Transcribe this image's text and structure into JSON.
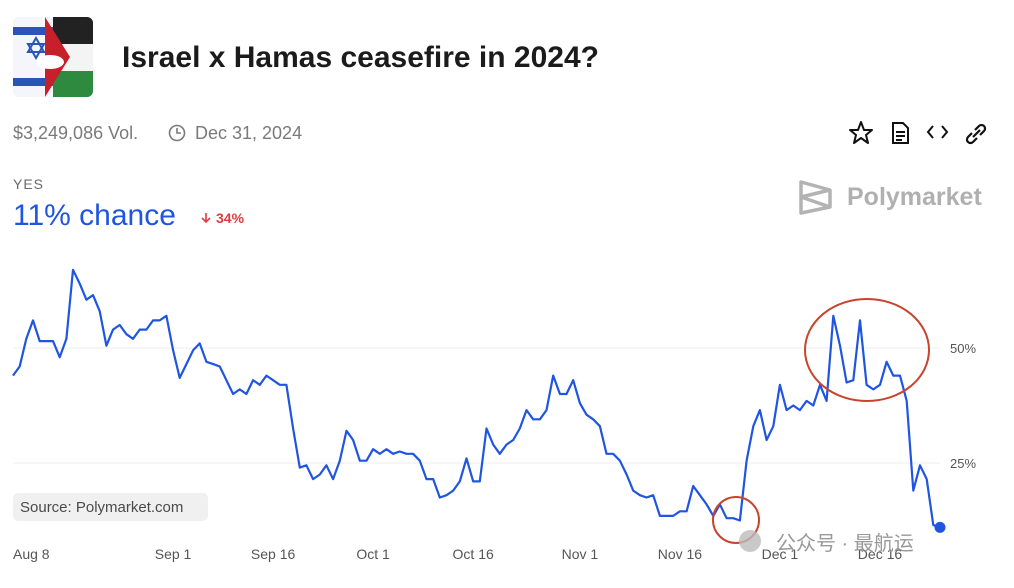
{
  "header": {
    "title": "Israel x Hamas ceasefire in 2024?",
    "volume": "$3,249,086 Vol.",
    "end_date": "Dec 31, 2024",
    "outcome": "YES",
    "chance": "11% chance",
    "change": "34%",
    "brand": "Polymarket",
    "source": "Source: Polymarket.com",
    "watermark": "公众号 · 最航运"
  },
  "chart_data": {
    "type": "line",
    "categories": [
      "Aug 8",
      null,
      null,
      null,
      null,
      null,
      null,
      null,
      null,
      null,
      null,
      null,
      null,
      null,
      null,
      null,
      null,
      null,
      null,
      null,
      null,
      null,
      null,
      null,
      "Sep 1",
      null,
      null,
      null,
      null,
      null,
      null,
      null,
      null,
      null,
      null,
      null,
      null,
      null,
      null,
      "Sep 16",
      null,
      null,
      null,
      null,
      null,
      null,
      null,
      null,
      null,
      null,
      null,
      null,
      null,
      null,
      "Oct 1",
      null,
      null,
      null,
      null,
      null,
      null,
      null,
      null,
      null,
      null,
      null,
      null,
      null,
      null,
      "Oct 16",
      null,
      null,
      null,
      null,
      null,
      null,
      null,
      null,
      null,
      null,
      null,
      null,
      null,
      null,
      null,
      "Nov 1",
      null,
      null,
      null,
      null,
      null,
      null,
      null,
      null,
      null,
      null,
      null,
      null,
      null,
      null,
      "Nov 16",
      null,
      null,
      null,
      null,
      null,
      null,
      null,
      null,
      null,
      null,
      null,
      null,
      null,
      null,
      "Dec 1",
      null,
      null,
      null,
      null,
      null,
      null,
      null,
      null,
      null,
      null,
      null,
      null,
      null,
      null,
      "Dec 16",
      null,
      null,
      null,
      null,
      null,
      null,
      null,
      null,
      null
    ],
    "series": [
      {
        "name": "YES",
        "color": "#1f55e0",
        "values": [
          44,
          46,
          52,
          56,
          51.5,
          51.5,
          51.5,
          48,
          52,
          67,
          64,
          60.5,
          61.5,
          58,
          50.5,
          54,
          55,
          53,
          52,
          54,
          54,
          56,
          56,
          57,
          49.5,
          43.5,
          46.5,
          49.5,
          51,
          47,
          46.5,
          46,
          43,
          40,
          41,
          40,
          43,
          42,
          44,
          43,
          42,
          42,
          32.5,
          24,
          24.5,
          21.5,
          22.5,
          24.5,
          21.5,
          25.5,
          32,
          30,
          25.5,
          25.5,
          28,
          27,
          28,
          27,
          27.5,
          27,
          27,
          25.5,
          21.5,
          21.5,
          17.5,
          18,
          19,
          21,
          26,
          21,
          21,
          32.5,
          29,
          27,
          29,
          30,
          32.5,
          36.5,
          34.5,
          34.5,
          36.5,
          44,
          40,
          40,
          43,
          38,
          35.5,
          34.5,
          33,
          27,
          27,
          25.5,
          22.5,
          19,
          18,
          17.5,
          18,
          13.5,
          13.5,
          13.5,
          14.5,
          14.5,
          20,
          18,
          16,
          13.5,
          16,
          13,
          13,
          12.5,
          25.5,
          33,
          36.5,
          30,
          33,
          42,
          36.5,
          37.5,
          36.5,
          38.5,
          37.5,
          42,
          38.5,
          57,
          50.5,
          42.5,
          43,
          56,
          42,
          41,
          42,
          47,
          44,
          44,
          38.5,
          19,
          24.5,
          21.5,
          11.5,
          11
        ]
      }
    ],
    "ylim": [
      0,
      70
    ],
    "yticks": [
      {
        "value": 25,
        "label": "25%"
      },
      {
        "value": 50,
        "label": "50%"
      }
    ],
    "grid": true
  }
}
